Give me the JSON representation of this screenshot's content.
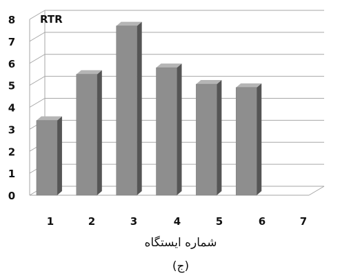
{
  "chart_data": {
    "type": "bar",
    "title": "RTR",
    "xlabel": "شماره ایستگاه",
    "ylabel": "",
    "subcaption": "(ج)",
    "categories": [
      "1",
      "2",
      "3",
      "4",
      "5",
      "6",
      "7"
    ],
    "values": [
      3.4,
      5.5,
      7.7,
      5.8,
      5.05,
      4.9,
      null
    ],
    "ylim": [
      0,
      8
    ],
    "yticks": [
      "0",
      "1",
      "2",
      "3",
      "4",
      "5",
      "6",
      "7",
      "8"
    ],
    "style": "3d-bar",
    "grid": true,
    "legend": "none",
    "colors": {
      "bar_front": "#8e8e8e",
      "bar_side": "#555555",
      "bar_top": "#b5b5b5",
      "grid": "#a6a6a6",
      "text": "#111111"
    }
  }
}
